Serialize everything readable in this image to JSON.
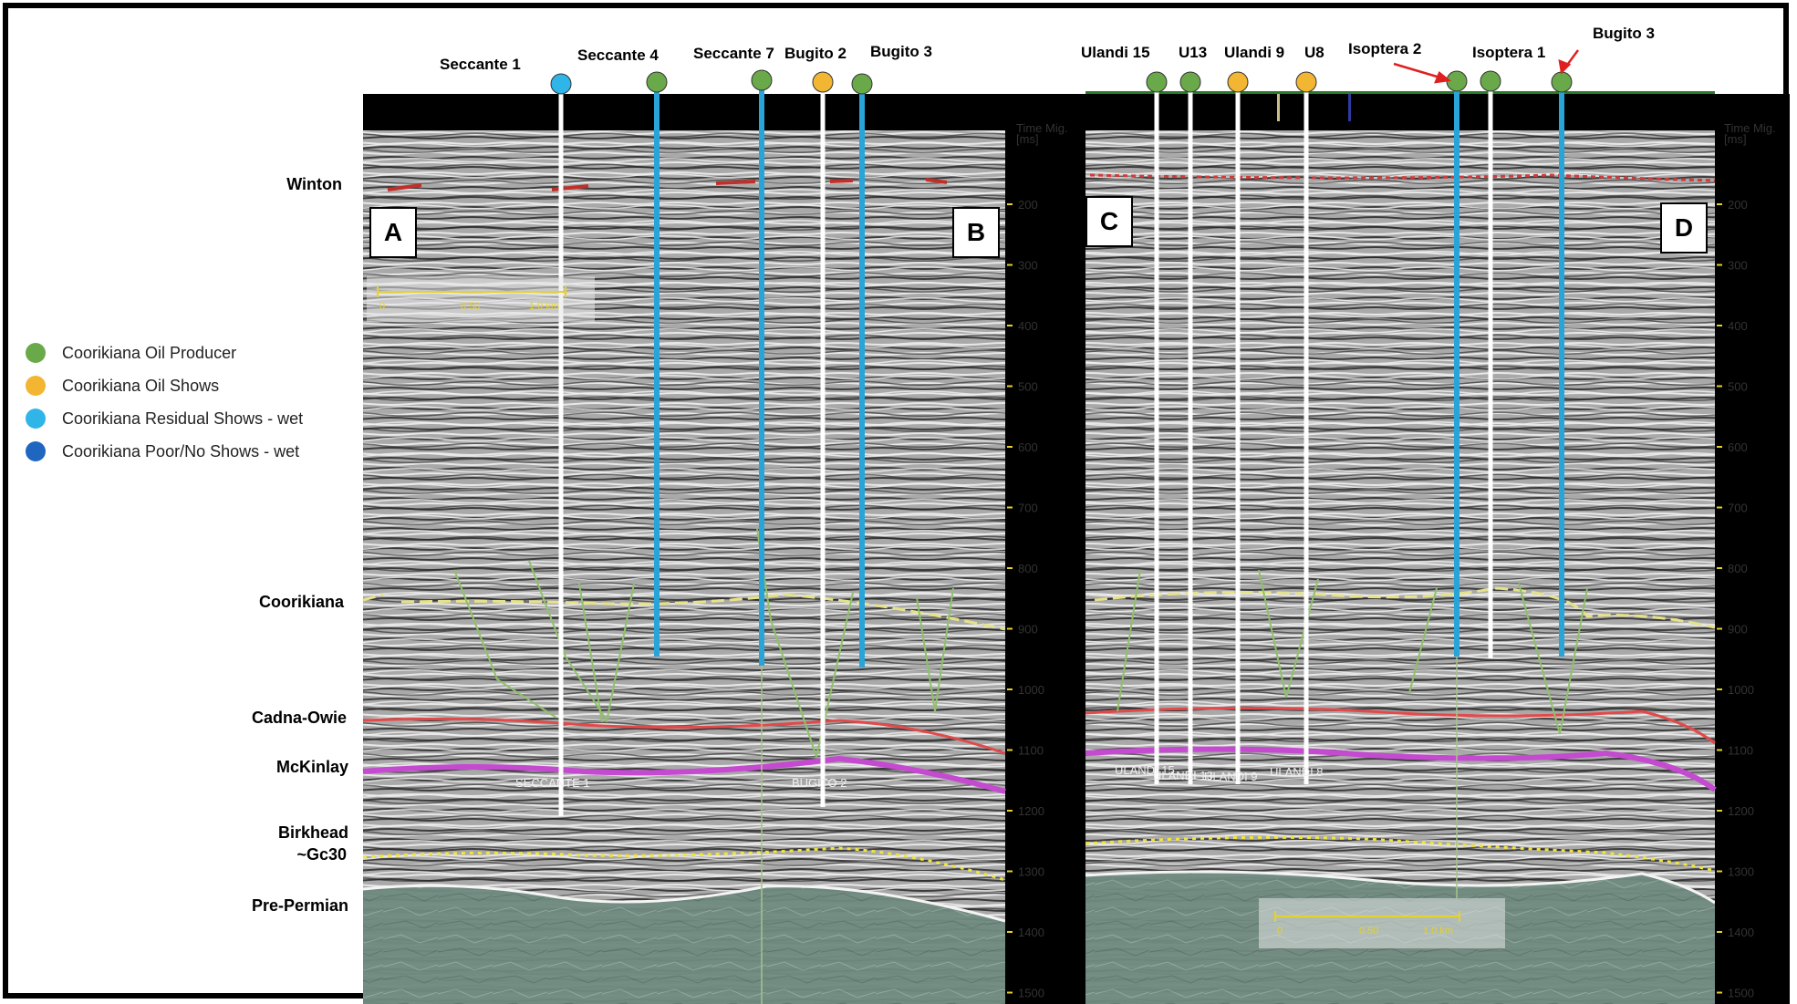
{
  "legend": [
    {
      "label": "Coorikiana Oil Producer",
      "color": "#6aa94a"
    },
    {
      "label": "Coorikiana Oil Shows",
      "color": "#f2b632"
    },
    {
      "label": "Coorikiana Residual Shows - wet",
      "color": "#2fb5e8"
    },
    {
      "label": "Coorikiana Poor/No Shows - wet",
      "color": "#1f66c0"
    }
  ],
  "horizons": [
    "Winton",
    "Coorikiana",
    "Cadna-Owie",
    "McKinlay",
    "Birkhead",
    "~Gc30",
    "Pre-Permian"
  ],
  "panel_letters": [
    "A",
    "B",
    "C",
    "D"
  ],
  "axis": {
    "title_line1": "Time Mig.",
    "title_line2": "[ms]",
    "ticks": [
      "200",
      "300",
      "400",
      "500",
      "600",
      "700",
      "800",
      "900",
      "1000",
      "1100",
      "1200",
      "1300",
      "1400",
      "1500"
    ]
  },
  "wells_left": [
    "Seccante 1",
    "Seccante 4",
    "Seccante 7",
    "Bugito 2",
    "Bugito 3"
  ],
  "wells_right": [
    "Ulandi 15",
    "U13",
    "Ulandi 9",
    "U8",
    "Isoptera 2",
    "Isoptera 1",
    "Bugito 3"
  ],
  "section_labels": {
    "left": [
      "SECCANTE 1",
      "BUGITO 2"
    ],
    "right": [
      "ULANDI 15",
      "ULANDI 13",
      "ULANDI 9",
      "ULANDI 8"
    ]
  },
  "scale_bar": {
    "left": [
      "0",
      "0.50",
      "1.0 km"
    ],
    "right": [
      "0",
      "0.50",
      "1.0 km"
    ]
  }
}
